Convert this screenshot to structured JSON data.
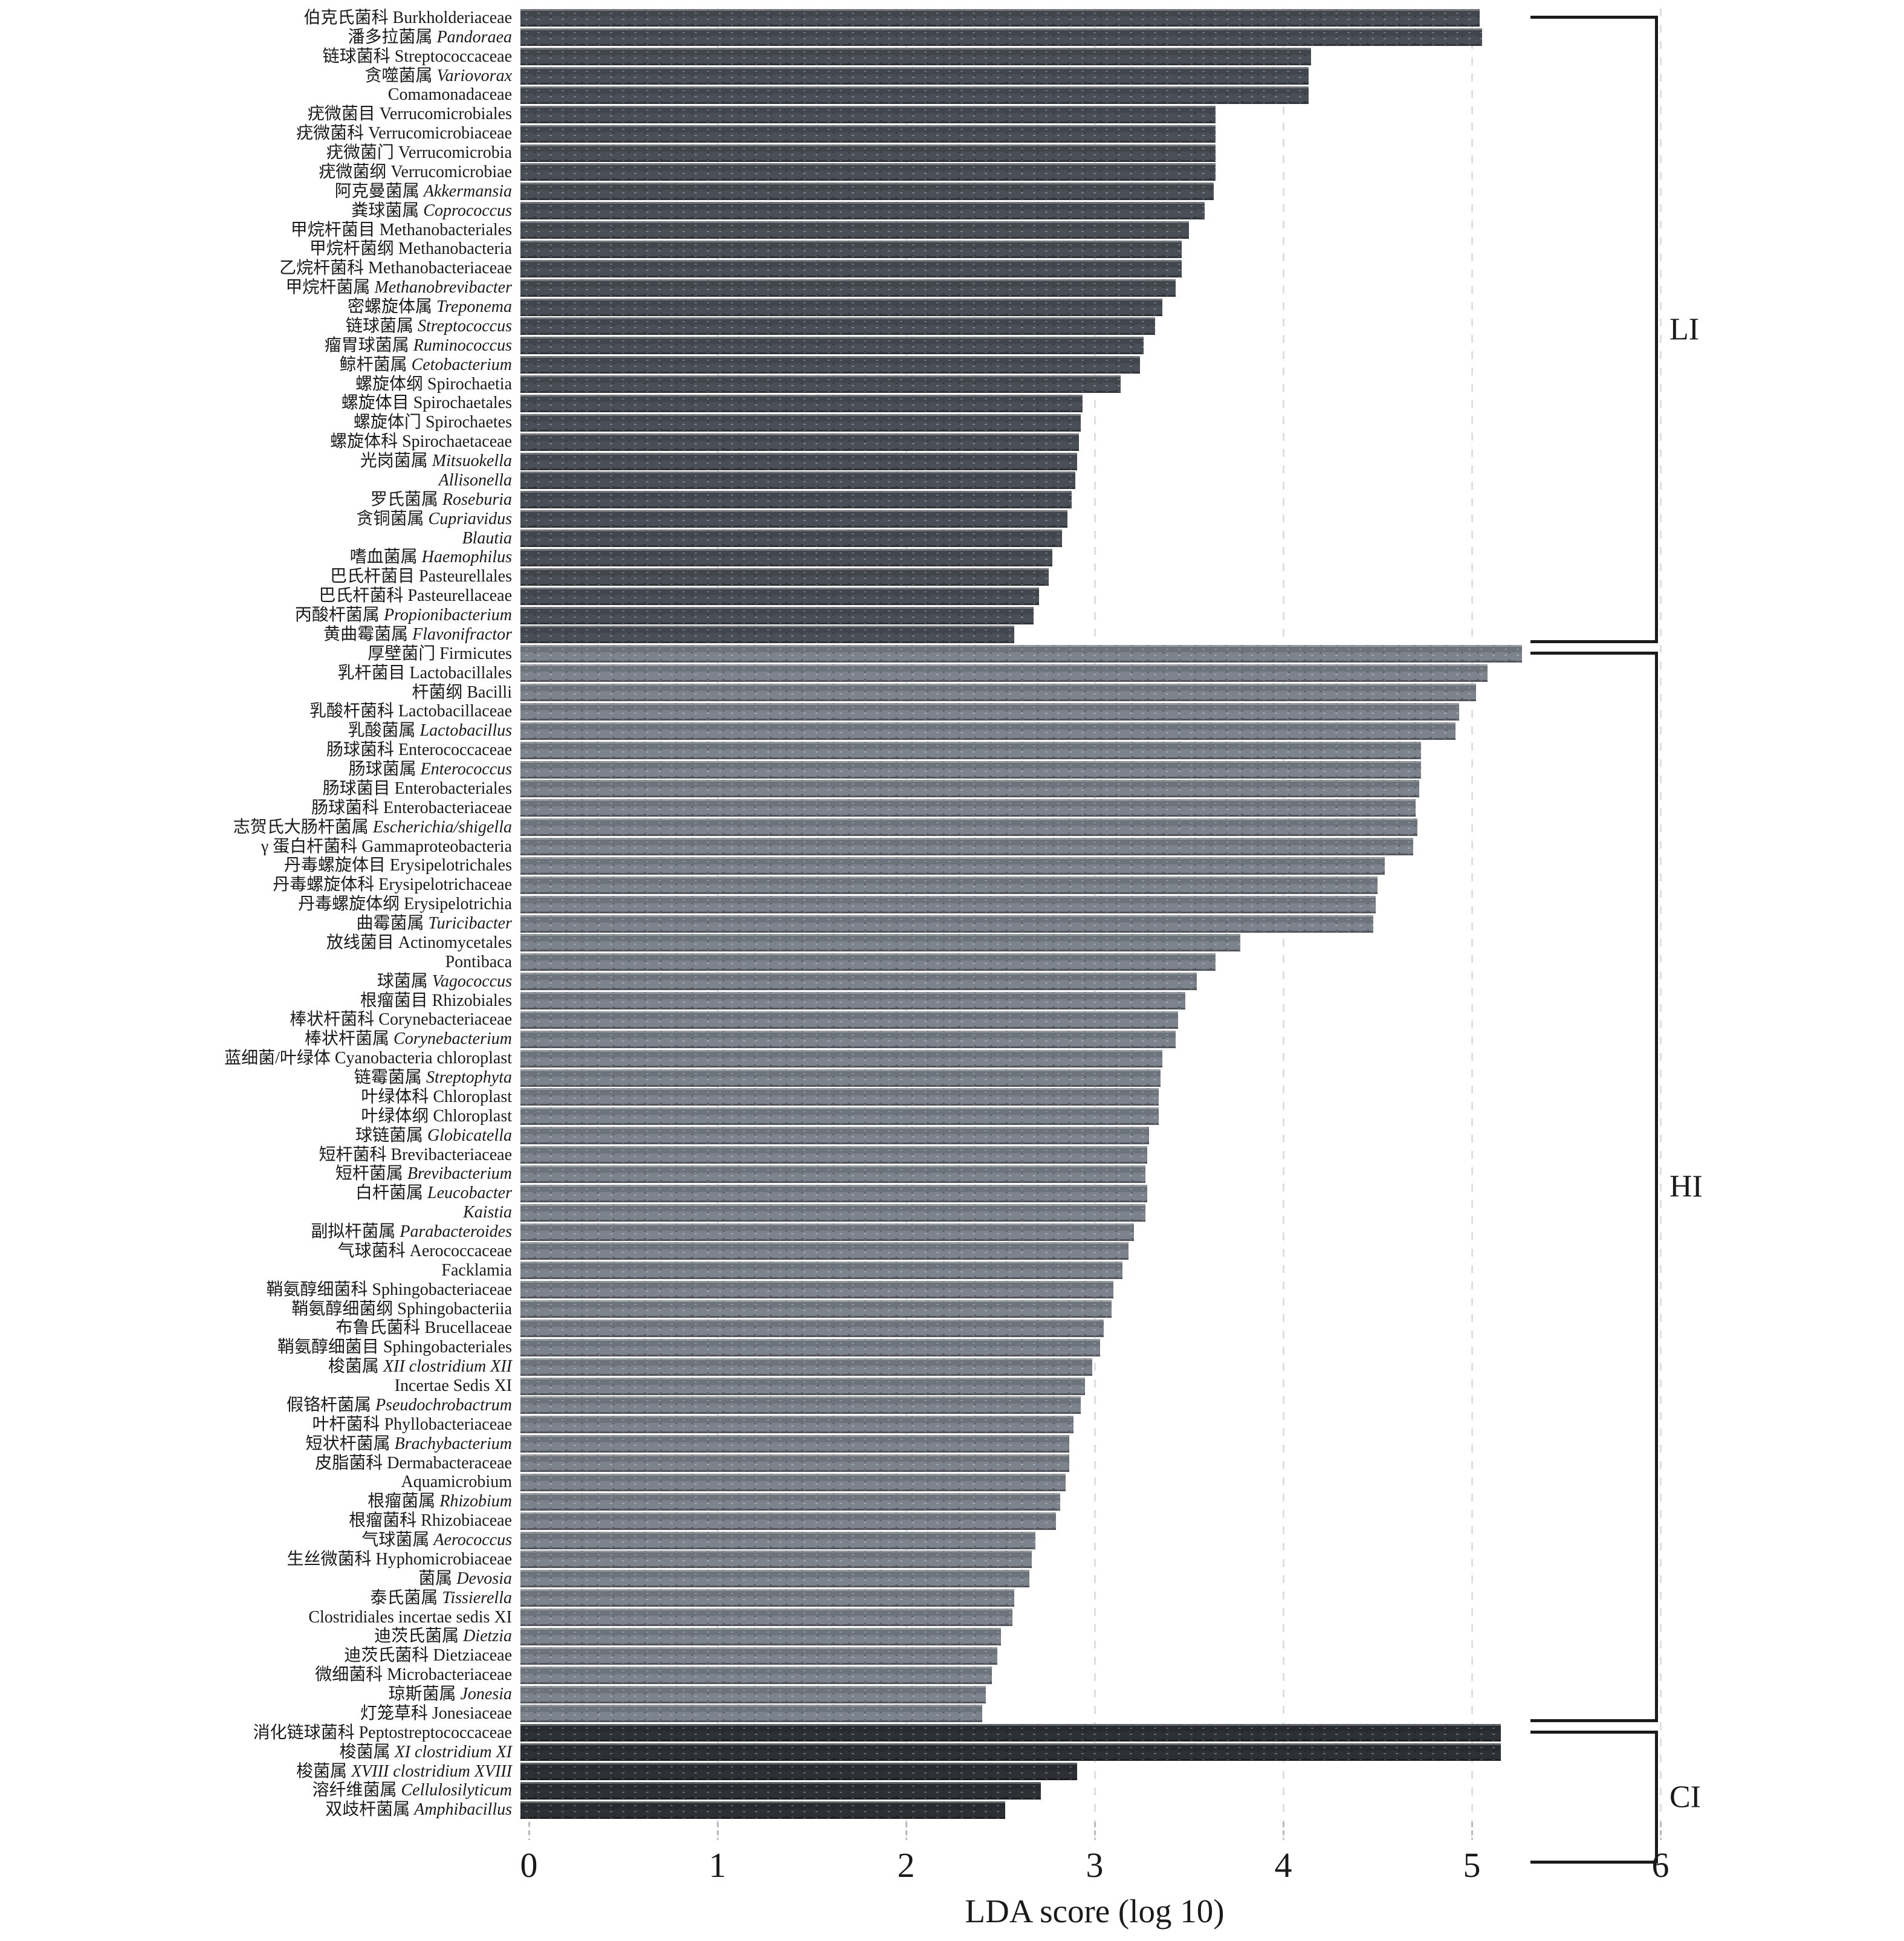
{
  "chart_data": {
    "type": "bar",
    "title": "",
    "xlabel": "LDA score (log 10)",
    "xlim": [
      0,
      6
    ],
    "xticks": [
      0,
      1,
      2,
      3,
      4,
      5,
      6
    ],
    "grid": "dashed-vertical-light",
    "legend_position": "right-brackets",
    "groups": [
      {
        "id": "LI",
        "label": "LI",
        "color": "#4a4f57"
      },
      {
        "id": "HI",
        "label": "HI",
        "color": "#7d838c"
      },
      {
        "id": "CI",
        "label": "CI",
        "color": "#2d3136"
      }
    ],
    "bars": [
      {
        "cn": "伯克氏菌科",
        "la": "Burkholderiaceae",
        "italic": false,
        "value": 5.05,
        "group": "LI"
      },
      {
        "cn": "潘多拉菌属",
        "la": "Pandoraea",
        "italic": true,
        "value": 5.06,
        "group": "LI"
      },
      {
        "cn": "链球菌科",
        "la": "Streptococcaceae",
        "italic": false,
        "value": 4.16,
        "group": "LI"
      },
      {
        "cn": "贪噬菌属",
        "la": "Variovorax",
        "italic": true,
        "value": 4.15,
        "group": "LI"
      },
      {
        "cn": "",
        "la": "Comamonadaceae",
        "italic": false,
        "value": 4.15,
        "group": "LI"
      },
      {
        "cn": "疣微菌目",
        "la": "Verrucomicrobiales",
        "italic": false,
        "value": 3.66,
        "group": "LI"
      },
      {
        "cn": "疣微菌科",
        "la": "Verrucomicrobiaceae",
        "italic": false,
        "value": 3.66,
        "group": "LI"
      },
      {
        "cn": "疣微菌门",
        "la": "Verrucomicrobia",
        "italic": false,
        "value": 3.66,
        "group": "LI"
      },
      {
        "cn": "疣微菌纲",
        "la": "Verrucomicrobiae",
        "italic": false,
        "value": 3.66,
        "group": "LI"
      },
      {
        "cn": "阿克曼菌属",
        "la": "Akkermansia",
        "italic": true,
        "value": 3.65,
        "group": "LI"
      },
      {
        "cn": "粪球菌属",
        "la": "Coprococcus",
        "italic": true,
        "value": 3.6,
        "group": "LI"
      },
      {
        "cn": "甲烷杆菌目",
        "la": "Methanobacteriales",
        "italic": false,
        "value": 3.52,
        "group": "LI"
      },
      {
        "cn": "甲烷杆菌纲",
        "la": "Methanobacteria",
        "italic": false,
        "value": 3.48,
        "group": "LI"
      },
      {
        "cn": "乙烷杆菌科",
        "la": "Methanobacteriaceae",
        "italic": false,
        "value": 3.48,
        "group": "LI"
      },
      {
        "cn": "甲烷杆菌属",
        "la": "Methanobrevibacter",
        "italic": true,
        "value": 3.45,
        "group": "LI"
      },
      {
        "cn": "密螺旋体属",
        "la": "Treponema",
        "italic": true,
        "value": 3.38,
        "group": "LI"
      },
      {
        "cn": "链球菌属",
        "la": "Streptococcus",
        "italic": true,
        "value": 3.34,
        "group": "LI"
      },
      {
        "cn": "瘤胃球菌属",
        "la": "Ruminococcus",
        "italic": true,
        "value": 3.28,
        "group": "LI"
      },
      {
        "cn": "鲸杆菌属",
        "la": "Cetobacterium",
        "italic": true,
        "value": 3.26,
        "group": "LI"
      },
      {
        "cn": "螺旋体纲",
        "la": "Spirochaetia",
        "italic": false,
        "value": 3.16,
        "group": "LI"
      },
      {
        "cn": "螺旋体目",
        "la": "Spirochaetales",
        "italic": false,
        "value": 2.96,
        "group": "LI"
      },
      {
        "cn": "螺旋体门",
        "la": "Spirochaetes",
        "italic": false,
        "value": 2.95,
        "group": "LI"
      },
      {
        "cn": "螺旋体科",
        "la": "Spirochaetaceae",
        "italic": false,
        "value": 2.94,
        "group": "LI"
      },
      {
        "cn": "光岗菌属",
        "la": "Mitsuokella",
        "italic": true,
        "value": 2.93,
        "group": "LI"
      },
      {
        "cn": "",
        "la": "Allisonella",
        "italic": true,
        "value": 2.92,
        "group": "LI"
      },
      {
        "cn": "罗氏菌属",
        "la": "Roseburia",
        "italic": true,
        "value": 2.9,
        "group": "LI"
      },
      {
        "cn": "贪铜菌属",
        "la": "Cupriavidus",
        "italic": true,
        "value": 2.88,
        "group": "LI"
      },
      {
        "cn": "",
        "la": "Blautia",
        "italic": true,
        "value": 2.85,
        "group": "LI"
      },
      {
        "cn": "嗜血菌属",
        "la": "Haemophilus",
        "italic": true,
        "value": 2.8,
        "group": "LI"
      },
      {
        "cn": "巴氏杆菌目",
        "la": "Pasteurellales",
        "italic": false,
        "value": 2.78,
        "group": "LI"
      },
      {
        "cn": "巴氏杆菌科",
        "la": "Pasteurellaceae",
        "italic": false,
        "value": 2.73,
        "group": "LI"
      },
      {
        "cn": "丙酸杆菌属",
        "la": "Propionibacterium",
        "italic": true,
        "value": 2.7,
        "group": "LI"
      },
      {
        "cn": "黄曲霉菌属",
        "la": "Flavonifractor",
        "italic": true,
        "value": 2.6,
        "group": "LI"
      },
      {
        "cn": "厚壁菌门",
        "la": "Firmicutes",
        "italic": false,
        "value": 5.27,
        "group": "HI"
      },
      {
        "cn": "乳杆菌目",
        "la": "Lactobacillales",
        "italic": false,
        "value": 5.09,
        "group": "HI"
      },
      {
        "cn": "杆菌纲",
        "la": "Bacilli",
        "italic": false,
        "value": 5.03,
        "group": "HI"
      },
      {
        "cn": "乳酸杆菌科",
        "la": "Lactobacillaceae",
        "italic": false,
        "value": 4.94,
        "group": "HI"
      },
      {
        "cn": "乳酸菌属",
        "la": "Lactobacillus",
        "italic": true,
        "value": 4.92,
        "group": "HI"
      },
      {
        "cn": "肠球菌科",
        "la": "Enterococcaceae",
        "italic": false,
        "value": 4.74,
        "group": "HI"
      },
      {
        "cn": "肠球菌属",
        "la": "Enterococcus",
        "italic": true,
        "value": 4.74,
        "group": "HI"
      },
      {
        "cn": "肠球菌目",
        "la": "Enterobacteriales",
        "italic": false,
        "value": 4.73,
        "group": "HI"
      },
      {
        "cn": "肠球菌科",
        "la": "Enterobacteriaceae",
        "italic": false,
        "value": 4.71,
        "group": "HI"
      },
      {
        "cn": "志贺氏大肠杆菌属",
        "la": "Escherichia/shigella",
        "italic": true,
        "value": 4.72,
        "group": "HI"
      },
      {
        "cn": "γ 蛋白杆菌科",
        "la": "Gammaproteobacteria",
        "italic": false,
        "value": 4.7,
        "group": "HI"
      },
      {
        "cn": "丹毒螺旋体目",
        "la": "Erysipelotrichales",
        "italic": false,
        "value": 4.55,
        "group": "HI"
      },
      {
        "cn": "丹毒螺旋体科",
        "la": "Erysipelotrichaceae",
        "italic": false,
        "value": 4.51,
        "group": "HI"
      },
      {
        "cn": "丹毒螺旋体纲",
        "la": "Erysipelotrichia",
        "italic": false,
        "value": 4.5,
        "group": "HI"
      },
      {
        "cn": "曲霉菌属",
        "la": "Turicibacter",
        "italic": true,
        "value": 4.49,
        "group": "HI"
      },
      {
        "cn": "放线菌目",
        "la": "Actinomycetales",
        "italic": false,
        "value": 3.79,
        "group": "HI"
      },
      {
        "cn": "",
        "la": "Pontibaca",
        "italic": false,
        "value": 3.66,
        "group": "HI"
      },
      {
        "cn": "球菌属",
        "la": "Vagococcus",
        "italic": true,
        "value": 3.56,
        "group": "HI"
      },
      {
        "cn": "根瘤菌目",
        "la": "Rhizobiales",
        "italic": false,
        "value": 3.5,
        "group": "HI"
      },
      {
        "cn": "棒状杆菌科",
        "la": "Corynebacteriaceae",
        "italic": false,
        "value": 3.46,
        "group": "HI"
      },
      {
        "cn": "棒状杆菌属",
        "la": "Corynebacterium",
        "italic": true,
        "value": 3.45,
        "group": "HI"
      },
      {
        "cn": "蓝细菌/叶绿体",
        "la": "Cyanobacteria chloroplast",
        "italic": false,
        "value": 3.38,
        "group": "HI"
      },
      {
        "cn": "链霉菌属",
        "la": "Streptophyta",
        "italic": true,
        "value": 3.37,
        "group": "HI"
      },
      {
        "cn": "叶绿体科",
        "la": "Chloroplast",
        "italic": false,
        "value": 3.36,
        "group": "HI"
      },
      {
        "cn": "叶绿体纲",
        "la": "Chloroplast",
        "italic": false,
        "value": 3.36,
        "group": "HI"
      },
      {
        "cn": "球链菌属",
        "la": "Globicatella",
        "italic": true,
        "value": 3.31,
        "group": "HI"
      },
      {
        "cn": "短杆菌科",
        "la": "Brevibacteriaceae",
        "italic": false,
        "value": 3.3,
        "group": "HI"
      },
      {
        "cn": "短杆菌属",
        "la": "Brevibacterium",
        "italic": true,
        "value": 3.29,
        "group": "HI"
      },
      {
        "cn": "白杆菌属",
        "la": "Leucobacter",
        "italic": true,
        "value": 3.3,
        "group": "HI"
      },
      {
        "cn": "",
        "la": "Kaistia",
        "italic": true,
        "value": 3.29,
        "group": "HI"
      },
      {
        "cn": "副拟杆菌属",
        "la": "Parabacteroides",
        "italic": true,
        "value": 3.23,
        "group": "HI"
      },
      {
        "cn": "气球菌科",
        "la": "Aerococcaceae",
        "italic": false,
        "value": 3.2,
        "group": "HI"
      },
      {
        "cn": "",
        "la": "Facklamia",
        "italic": false,
        "value": 3.17,
        "group": "HI"
      },
      {
        "cn": "鞘氨醇细菌科",
        "la": "Sphingobacteriaceae",
        "italic": false,
        "value": 3.12,
        "group": "HI"
      },
      {
        "cn": "鞘氨醇细菌纲",
        "la": "Sphingobacteriia",
        "italic": false,
        "value": 3.11,
        "group": "HI"
      },
      {
        "cn": "布鲁氏菌科",
        "la": "Brucellaceae",
        "italic": false,
        "value": 3.07,
        "group": "HI"
      },
      {
        "cn": "鞘氨醇细菌目",
        "la": "Sphingobacteriales",
        "italic": false,
        "value": 3.05,
        "group": "HI"
      },
      {
        "cn": "梭菌属",
        "la": "XII clostridium XII",
        "italic": true,
        "value": 3.01,
        "group": "HI"
      },
      {
        "cn": "",
        "la": "Incertae Sedis XI",
        "italic": false,
        "value": 2.97,
        "group": "HI"
      },
      {
        "cn": "假铬杆菌属",
        "la": "Pseudochrobactrum",
        "italic": true,
        "value": 2.95,
        "group": "HI"
      },
      {
        "cn": "叶杆菌科",
        "la": "Phyllobacteriaceae",
        "italic": false,
        "value": 2.91,
        "group": "HI"
      },
      {
        "cn": "短状杆菌属",
        "la": "Brachybacterium",
        "italic": true,
        "value": 2.89,
        "group": "HI"
      },
      {
        "cn": "皮脂菌科",
        "la": "Dermabacteraceae",
        "italic": false,
        "value": 2.89,
        "group": "HI"
      },
      {
        "cn": "",
        "la": "Aquamicrobium",
        "italic": false,
        "value": 2.87,
        "group": "HI"
      },
      {
        "cn": "根瘤菌属",
        "la": "Rhizobium",
        "italic": true,
        "value": 2.84,
        "group": "HI"
      },
      {
        "cn": "根瘤菌科",
        "la": "Rhizobiaceae",
        "italic": false,
        "value": 2.82,
        "group": "HI"
      },
      {
        "cn": "气球菌属",
        "la": "Aerococcus",
        "italic": true,
        "value": 2.71,
        "group": "HI"
      },
      {
        "cn": "生丝微菌科",
        "la": "Hyphomicrobiaceae",
        "italic": false,
        "value": 2.69,
        "group": "HI"
      },
      {
        "cn": "菌属",
        "la": "Devosia",
        "italic": true,
        "value": 2.68,
        "group": "HI"
      },
      {
        "cn": "泰氏菌属",
        "la": "Tissierella",
        "italic": true,
        "value": 2.6,
        "group": "HI"
      },
      {
        "cn": "",
        "la": "Clostridiales incertae sedis XI",
        "italic": false,
        "value": 2.59,
        "group": "HI"
      },
      {
        "cn": "迪茨氏菌属",
        "la": "Dietzia",
        "italic": true,
        "value": 2.53,
        "group": "HI"
      },
      {
        "cn": "迪茨氏菌科",
        "la": "Dietziaceae",
        "italic": false,
        "value": 2.51,
        "group": "HI"
      },
      {
        "cn": "微细菌科",
        "la": "Microbacteriaceae",
        "italic": false,
        "value": 2.48,
        "group": "HI"
      },
      {
        "cn": "琼斯菌属",
        "la": "Jonesia",
        "italic": true,
        "value": 2.45,
        "group": "HI"
      },
      {
        "cn": "灯笼草科",
        "la": "Jonesiaceae",
        "italic": false,
        "value": 2.43,
        "group": "HI"
      },
      {
        "cn": "消化链球菌科",
        "la": "Peptostreptococcaceae",
        "italic": false,
        "value": 5.16,
        "group": "CI"
      },
      {
        "cn": "梭菌属",
        "la": "XI clostridium XI",
        "italic": true,
        "value": 5.16,
        "group": "CI"
      },
      {
        "cn": "梭菌属",
        "la": "XVIII clostridium XVIII",
        "italic": true,
        "value": 2.93,
        "group": "CI"
      },
      {
        "cn": "溶纤维菌属",
        "la": "Cellulosilyticum",
        "italic": true,
        "value": 2.74,
        "group": "CI"
      },
      {
        "cn": "双歧杆菌属",
        "la": "Amphibacillus",
        "italic": true,
        "value": 2.55,
        "group": "CI"
      }
    ]
  }
}
